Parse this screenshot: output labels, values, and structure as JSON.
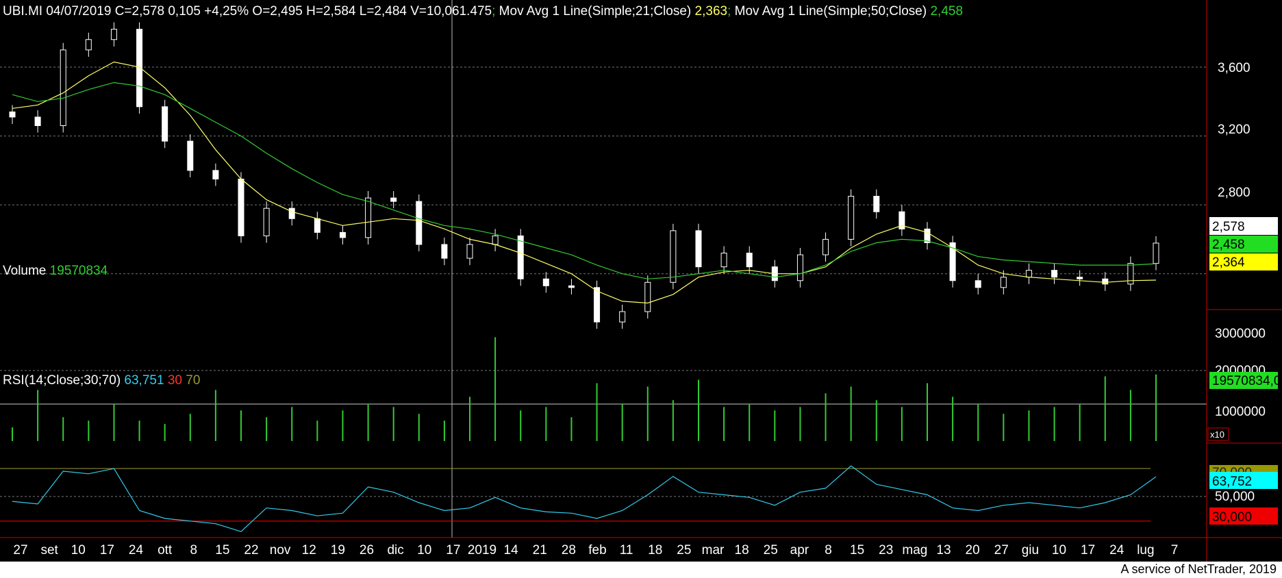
{
  "header": {
    "price_line": "UBI.MI 04/07/2019 C=2,578 0,105 +4,25% O=2,495 H=2,584 L=2,484 V=10,061.475",
    "sep1": ";",
    "ma21_label": " Mov Avg 1 Line(Simple;21;Close) ",
    "ma21_value": "2,363",
    "sep2": ";",
    "ma50_label": " Mov Avg 1 Line(Simple;50;Close) ",
    "ma50_value": "2,458"
  },
  "volume_header": {
    "label": "Volume ",
    "value": "19570834"
  },
  "rsi_header": {
    "label": "RSI(14;Close;30;70) ",
    "value": "63,751",
    "low": "30",
    "high": "70"
  },
  "price_axis": {
    "ticks": [
      "3,600",
      "3,200",
      "2,800"
    ]
  },
  "price_tags": {
    "close": "2,578",
    "ma50": "2,458",
    "ma21": "2,364"
  },
  "volume_axis": {
    "ticks": [
      "3000000",
      "2000000",
      "1000000"
    ],
    "tag": "19570834,0",
    "multiplier": "x10"
  },
  "rsi_axis": {
    "ticks": [
      "70,000",
      "50,000"
    ],
    "tag_value": "63,752",
    "tag_low": "30,000"
  },
  "date_axis": {
    "labels": [
      "27",
      "set",
      "10",
      "17",
      "24",
      "ott",
      "8",
      "15",
      "22",
      "nov",
      "12",
      "19",
      "26",
      "dic",
      "10",
      "17",
      "2019",
      "14",
      "21",
      "28",
      "feb",
      "11",
      "18",
      "25",
      "mar",
      "18",
      "25",
      "apr",
      "8",
      "15",
      "23",
      "mag",
      "13",
      "20",
      "27",
      "giu",
      "10",
      "17",
      "24",
      "lug",
      "7"
    ]
  },
  "footer": "A service of NetTrader, 2019",
  "colors": {
    "background": "#000000",
    "candle": "#ffffff",
    "ma21": "#ffff66",
    "ma50": "#33cc33",
    "volume": "#33cc33",
    "rsi": "#33ccee",
    "rsi_high": "#999933",
    "rsi_low": "#ff0000",
    "axis_frame": "#cc0000",
    "grid": "#777777"
  },
  "chart_data": [
    {
      "type": "candlestick",
      "title": "UBI.MI",
      "ylim": [
        2.2,
        3.95
      ],
      "y_ticks": [
        3.6,
        3.2,
        2.8,
        2.4
      ],
      "x": [
        "2018-08-24",
        "2018-08-31",
        "2018-09-07",
        "2018-09-14",
        "2018-09-21",
        "2018-09-28",
        "2018-10-05",
        "2018-10-12",
        "2018-10-19",
        "2018-10-26",
        "2018-11-02",
        "2018-11-09",
        "2018-11-16",
        "2018-11-23",
        "2018-11-30",
        "2018-12-07",
        "2018-12-14",
        "2018-12-21",
        "2018-12-28",
        "2019-01-04",
        "2019-01-11",
        "2019-01-18",
        "2019-01-25",
        "2019-02-01",
        "2019-02-08",
        "2019-02-15",
        "2019-02-22",
        "2019-03-01",
        "2019-03-08",
        "2019-03-15",
        "2019-03-22",
        "2019-03-29",
        "2019-04-05",
        "2019-04-12",
        "2019-04-19",
        "2019-04-26",
        "2019-05-03",
        "2019-05-10",
        "2019-05-17",
        "2019-05-24",
        "2019-05-31",
        "2019-06-07",
        "2019-06-14",
        "2019-06-21",
        "2019-06-28",
        "2019-07-04"
      ],
      "close": [
        3.31,
        3.26,
        3.7,
        3.76,
        3.82,
        3.37,
        3.17,
        3.0,
        2.95,
        2.62,
        2.78,
        2.72,
        2.64,
        2.61,
        2.84,
        2.82,
        2.57,
        2.49,
        2.57,
        2.62,
        2.37,
        2.33,
        2.32,
        2.12,
        2.18,
        2.35,
        2.65,
        2.44,
        2.52,
        2.44,
        2.36,
        2.51,
        2.6,
        2.85,
        2.76,
        2.66,
        2.58,
        2.36,
        2.32,
        2.38,
        2.42,
        2.38,
        2.37,
        2.34,
        2.46,
        2.578
      ],
      "ma21": [
        3.36,
        3.38,
        3.45,
        3.55,
        3.63,
        3.6,
        3.48,
        3.32,
        3.12,
        2.95,
        2.83,
        2.76,
        2.72,
        2.68,
        2.7,
        2.72,
        2.71,
        2.66,
        2.6,
        2.57,
        2.52,
        2.46,
        2.4,
        2.3,
        2.24,
        2.23,
        2.28,
        2.38,
        2.41,
        2.42,
        2.4,
        2.4,
        2.44,
        2.55,
        2.63,
        2.68,
        2.64,
        2.55,
        2.45,
        2.4,
        2.38,
        2.37,
        2.36,
        2.35,
        2.36,
        2.363
      ],
      "ma50": [
        3.44,
        3.4,
        3.42,
        3.47,
        3.51,
        3.49,
        3.44,
        3.36,
        3.28,
        3.2,
        3.1,
        3.01,
        2.93,
        2.86,
        2.82,
        2.77,
        2.72,
        2.68,
        2.66,
        2.63,
        2.59,
        2.55,
        2.51,
        2.45,
        2.4,
        2.37,
        2.38,
        2.4,
        2.42,
        2.4,
        2.38,
        2.4,
        2.45,
        2.53,
        2.58,
        2.6,
        2.59,
        2.55,
        2.5,
        2.48,
        2.47,
        2.46,
        2.45,
        2.45,
        2.45,
        2.458
      ]
    },
    {
      "type": "bar",
      "title": "Volume",
      "ylim": [
        0,
        3500000
      ],
      "values": [
        400000,
        1500000,
        700000,
        600000,
        1100000,
        600000,
        500000,
        800000,
        1500000,
        900000,
        700000,
        1000000,
        600000,
        900000,
        1100000,
        1000000,
        800000,
        600000,
        1300000,
        3050000,
        900000,
        1000000,
        700000,
        1700000,
        1100000,
        1600000,
        1200000,
        1800000,
        1000000,
        1100000,
        900000,
        1000000,
        1400000,
        1600000,
        1200000,
        1000000,
        1700000,
        1300000,
        1100000,
        800000,
        900000,
        1000000,
        1100000,
        1900000,
        1500000,
        1957083
      ]
    },
    {
      "type": "line",
      "title": "RSI(14;Close;30;70)",
      "ylim": [
        20,
        80
      ],
      "thresholds": [
        70,
        30
      ],
      "values": [
        45,
        43,
        68,
        66,
        70,
        38,
        32,
        30,
        28,
        22,
        40,
        38,
        34,
        36,
        56,
        52,
        44,
        38,
        40,
        48,
        40,
        37,
        36,
        32,
        38,
        50,
        64,
        52,
        50,
        48,
        42,
        52,
        55,
        72,
        58,
        54,
        50,
        40,
        38,
        42,
        44,
        42,
        40,
        44,
        50,
        63.751
      ]
    }
  ]
}
